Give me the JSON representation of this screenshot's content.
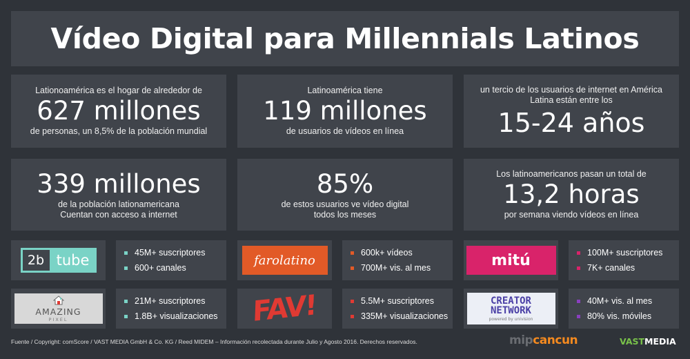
{
  "title": "Vídeo Digital para Millennials Latinos",
  "stats": [
    {
      "top": "Lationoamérica es el hogar de alrededor de",
      "big": "627 millones",
      "bottom": "de personas, un 8,5% de la población mundial"
    },
    {
      "top": "Latinoamérica tiene",
      "big": "119 millones",
      "bottom": "de usuarios de vídeos en línea"
    },
    {
      "top": "un tercio de los usuarios de internet en América Latina están entre los",
      "big": "15-24 años",
      "bottom": ""
    },
    {
      "top": "",
      "big": "339 millones",
      "bottom": "de la población lationamericana Cuentan con acceso a internet"
    },
    {
      "top": "",
      "big": "85%",
      "bottom": "de estos usuarios ve vídeo digital todos los meses"
    },
    {
      "top": "Los latinoamericanos pasan un total de",
      "big": "13,2 horas",
      "bottom": "por semana viendo vídeos en línea"
    }
  ],
  "channels": [
    {
      "logo": {
        "text_a": "2b",
        "text_b": "tube"
      },
      "bullet_color": "#7ad3c6",
      "facts": [
        "45M+ suscriptores",
        "600+ canales"
      ]
    },
    {
      "logo": {
        "text": "farolatino"
      },
      "bullet_color": "#e25a27",
      "facts": [
        "600k+ vídeos",
        "700M+ vis. al mes"
      ]
    },
    {
      "logo": {
        "text": "mitú"
      },
      "bullet_color": "#d9236a",
      "facts": [
        "100M+ suscriptores",
        "7K+ canales"
      ]
    },
    {
      "logo": {
        "text": "AMAZING",
        "sub": "PIXEL"
      },
      "bullet_color": "#7ad3c6",
      "facts": [
        "21M+ suscriptores",
        "1.8B+ visualizaciones"
      ]
    },
    {
      "logo": {
        "text": "FAV!"
      },
      "bullet_color": "#e03a33",
      "facts": [
        "5.5M+ suscriptores",
        "335M+ visualizaciones"
      ]
    },
    {
      "logo": {
        "line1": "CREATOR",
        "line2": "NETWORK",
        "sub": "powered by univision"
      },
      "bullet_color": "#8a3fbf",
      "facts": [
        "40M+ vis. al mes",
        "80% vis. móviles"
      ]
    }
  ],
  "footer": "Fuente / Copyright: comScore / VAST MEDIA GmbH & Co. KG / Reed MIDEM – Información recolectada durante Julio y Agosto 2016. Derechos reservados.",
  "brands": {
    "mip_a": "mip",
    "mip_b": "cancun",
    "vast_a": "VAST",
    "vast_b": "MEDIA"
  }
}
